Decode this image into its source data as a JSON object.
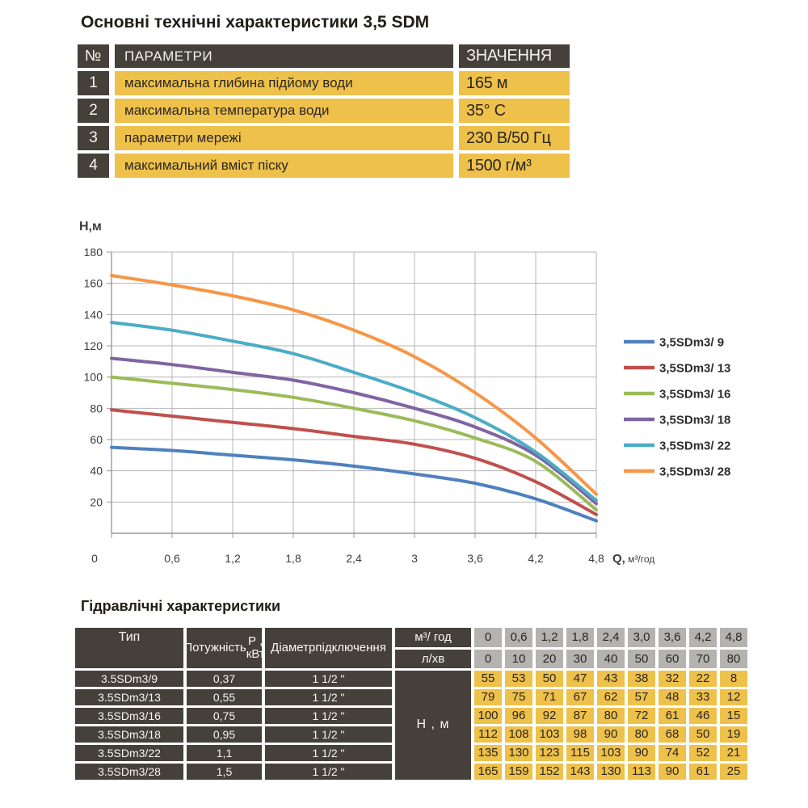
{
  "page_title": "Основні технічні характеристики 3,5 SDM",
  "spec_table": {
    "headers": {
      "num": "№",
      "param": "ПАРАМЕТРИ",
      "value": "ЗНАЧЕННЯ"
    },
    "rows": [
      {
        "num": "1",
        "param": "максимальна глибина підйому води",
        "value": "165 м"
      },
      {
        "num": "2",
        "param": "максимальна температура води",
        "value": "35° С"
      },
      {
        "num": "3",
        "param": "параметри мережі",
        "value": "230 В/50 Гц"
      },
      {
        "num": "4",
        "param": "максимальний вміст піску",
        "value": "1500 г/м³"
      }
    ]
  },
  "chart_data": {
    "type": "line",
    "title": "",
    "ylabel": "Н,м",
    "xlabel": "Q,",
    "xlabel_unit": "м³/год",
    "x": [
      0,
      0.6,
      1.2,
      1.8,
      2.4,
      3,
      3.6,
      4.2,
      4.8
    ],
    "x_tick_labels": [
      "0",
      "0,6",
      "1,2",
      "1,8",
      "2,4",
      "3",
      "3,6",
      "4,2",
      "4,8"
    ],
    "y_ticks": [
      20,
      40,
      60,
      80,
      100,
      120,
      140,
      160,
      180
    ],
    "xlim": [
      0,
      4.8
    ],
    "ylim": [
      0,
      180
    ],
    "grid": true,
    "legend_position": "right",
    "series": [
      {
        "name": "3,5SDm3/ 9",
        "color": "#4f81bd",
        "values": [
          55,
          53,
          50,
          47,
          43,
          38,
          32,
          22,
          8
        ]
      },
      {
        "name": "3,5SDm3/ 13",
        "color": "#c0504d",
        "values": [
          79,
          75,
          71,
          67,
          62,
          57,
          48,
          33,
          12
        ]
      },
      {
        "name": "3,5SDm3/ 16",
        "color": "#9bbb59",
        "values": [
          100,
          96,
          92,
          87,
          80,
          72,
          61,
          46,
          15
        ]
      },
      {
        "name": "3,5SDm3/ 18",
        "color": "#8064a2",
        "values": [
          112,
          108,
          103,
          98,
          90,
          80,
          68,
          50,
          19
        ]
      },
      {
        "name": "3,5SDm3/ 22",
        "color": "#4bacc6",
        "values": [
          135,
          130,
          123,
          115,
          103,
          90,
          74,
          52,
          21
        ]
      },
      {
        "name": "3,5SDm3/ 28",
        "color": "#f79646",
        "values": [
          165,
          159,
          152,
          143,
          130,
          113,
          90,
          61,
          25
        ]
      }
    ]
  },
  "hydro_table": {
    "title": "Гідравлічні характеристики",
    "headers": {
      "type": "Тип",
      "power": [
        "Потужність",
        "Р , кВт"
      ],
      "diameter": [
        "Діаметр",
        "підключення"
      ],
      "flow_m3h": "м³/ год",
      "flow_lmin": "л/хв",
      "head": "Н , м"
    },
    "flow_m3h_values": [
      "0",
      "0,6",
      "1,2",
      "1,8",
      "2,4",
      "3,0",
      "3,6",
      "4,2",
      "4,8"
    ],
    "flow_lmin_values": [
      "0",
      "10",
      "20",
      "30",
      "40",
      "50",
      "60",
      "70",
      "80"
    ],
    "rows": [
      {
        "type": "3.5SDm3/9",
        "power": "0,37",
        "diameter": "1 1/2 \"",
        "heads": [
          55,
          53,
          50,
          47,
          43,
          38,
          32,
          22,
          8
        ]
      },
      {
        "type": "3.5SDm3/13",
        "power": "0,55",
        "diameter": "1 1/2 \"",
        "heads": [
          79,
          75,
          71,
          67,
          62,
          57,
          48,
          33,
          12
        ]
      },
      {
        "type": "3.5SDm3/16",
        "power": "0,75",
        "diameter": "1 1/2 \"",
        "heads": [
          100,
          96,
          92,
          87,
          80,
          72,
          61,
          46,
          15
        ]
      },
      {
        "type": "3.5SDm3/18",
        "power": "0,95",
        "diameter": "1 1/2 \"",
        "heads": [
          112,
          108,
          103,
          98,
          90,
          80,
          68,
          50,
          19
        ]
      },
      {
        "type": "3.5SDm3/22",
        "power": "1,1",
        "diameter": "1 1/2 \"",
        "heads": [
          135,
          130,
          123,
          115,
          103,
          90,
          74,
          52,
          21
        ]
      },
      {
        "type": "3.5SDm3/28",
        "power": "1,5",
        "diameter": "1 1/2 \"",
        "heads": [
          165,
          159,
          152,
          143,
          130,
          113,
          90,
          61,
          25
        ]
      }
    ]
  },
  "colors": {
    "dark_cell": "#46403a",
    "yellow_cell": "#eec14b",
    "gray_cell": "#b4b3b0",
    "grid_line": "#b6b6b6",
    "axis_line": "#999999",
    "tick_text": "#3c3c3c"
  }
}
